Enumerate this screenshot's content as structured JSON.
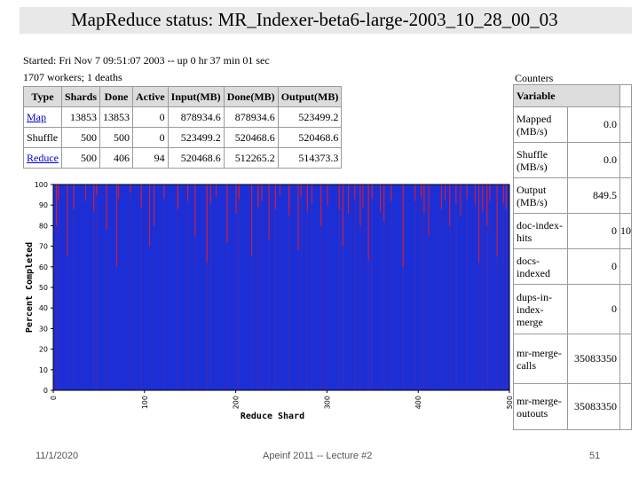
{
  "page": {
    "title": "MapReduce status: MR_Indexer-beta6-large-2003_10_28_00_03",
    "started": "Started: Fri Nov 7 09:51:07 2003 -- up 0 hr 37 min 01 sec",
    "workers": "1707 workers; 1 deaths"
  },
  "jobs_table": {
    "headers": [
      "Type",
      "Shards",
      "Done",
      "Active",
      "Input(MB)",
      "Done(MB)",
      "Output(MB)"
    ],
    "rows": [
      {
        "type": "Map",
        "shards": "13853",
        "done": "13853",
        "active": "0",
        "input": "878934.6",
        "done_mb": "878934.6",
        "output": "523499.2"
      },
      {
        "type": "Shuffle",
        "shards": "500",
        "done": "500",
        "active": "0",
        "input": "523499.2",
        "done_mb": "520468.6",
        "output": "520468.6"
      },
      {
        "type": "Reduce",
        "shards": "500",
        "done": "406",
        "active": "94",
        "input": "520468.6",
        "done_mb": "512265.2",
        "output": "514373.3"
      }
    ]
  },
  "counters": {
    "title": "Counters",
    "header": "Variable",
    "items": [
      {
        "name": "Mapped (MB/s)",
        "value": "0.0",
        "extra": ""
      },
      {
        "name": "Shuffle (MB/s)",
        "value": "0.0",
        "extra": ""
      },
      {
        "name": "Output (MB/s)",
        "value": "849.5",
        "extra": ""
      },
      {
        "name": "doc-index-hits",
        "value": "0",
        "extra": "10"
      },
      {
        "name": "docs-indexed",
        "value": "0",
        "extra": ""
      },
      {
        "name": "dups-in-index-merge",
        "value": "0",
        "extra": ""
      },
      {
        "name": "mr-merge-calls",
        "value": "35083350",
        "extra": ""
      },
      {
        "name": "mr-merge-outouts",
        "value": "35083350",
        "extra": ""
      }
    ]
  },
  "chart_data": {
    "type": "bar",
    "xlabel": "Reduce Shard",
    "ylabel": "Percent Completed",
    "xlim": [
      0,
      500
    ],
    "ylim": [
      0,
      100
    ],
    "xticks": [
      0,
      100,
      200,
      300,
      400,
      500
    ],
    "yticks": [
      0,
      10,
      20,
      30,
      40,
      50,
      60,
      70,
      80,
      90,
      100
    ],
    "shards": 500,
    "done_shards": 406,
    "bar_color": "#1c2fd6",
    "partial_color": "#d01e3c",
    "partial_shards": [
      {
        "x": 3,
        "y": 80
      },
      {
        "x": 5,
        "y": 93
      },
      {
        "x": 15,
        "y": 65
      },
      {
        "x": 22,
        "y": 88
      },
      {
        "x": 35,
        "y": 92
      },
      {
        "x": 44,
        "y": 87
      },
      {
        "x": 47,
        "y": 95
      },
      {
        "x": 58,
        "y": 78
      },
      {
        "x": 69,
        "y": 60
      },
      {
        "x": 71,
        "y": 93
      },
      {
        "x": 84,
        "y": 96
      },
      {
        "x": 96,
        "y": 89
      },
      {
        "x": 105,
        "y": 70
      },
      {
        "x": 110,
        "y": 80
      },
      {
        "x": 121,
        "y": 93
      },
      {
        "x": 136,
        "y": 88
      },
      {
        "x": 147,
        "y": 92
      },
      {
        "x": 155,
        "y": 75
      },
      {
        "x": 168,
        "y": 62
      },
      {
        "x": 172,
        "y": 91
      },
      {
        "x": 178,
        "y": 94
      },
      {
        "x": 190,
        "y": 72
      },
      {
        "x": 200,
        "y": 86
      },
      {
        "x": 203,
        "y": 93
      },
      {
        "x": 217,
        "y": 65
      },
      {
        "x": 224,
        "y": 89
      },
      {
        "x": 228,
        "y": 92
      },
      {
        "x": 236,
        "y": 73
      },
      {
        "x": 243,
        "y": 88
      },
      {
        "x": 248,
        "y": 95
      },
      {
        "x": 258,
        "y": 85
      },
      {
        "x": 268,
        "y": 68
      },
      {
        "x": 271,
        "y": 94
      },
      {
        "x": 278,
        "y": 87
      },
      {
        "x": 283,
        "y": 91
      },
      {
        "x": 293,
        "y": 80
      },
      {
        "x": 300,
        "y": 90
      },
      {
        "x": 313,
        "y": 88
      },
      {
        "x": 317,
        "y": 70
      },
      {
        "x": 323,
        "y": 86
      },
      {
        "x": 330,
        "y": 93
      },
      {
        "x": 336,
        "y": 80
      },
      {
        "x": 339,
        "y": 89
      },
      {
        "x": 345,
        "y": 63
      },
      {
        "x": 349,
        "y": 93
      },
      {
        "x": 358,
        "y": 87
      },
      {
        "x": 362,
        "y": 82
      },
      {
        "x": 370,
        "y": 92
      },
      {
        "x": 383,
        "y": 60
      },
      {
        "x": 396,
        "y": 92
      },
      {
        "x": 403,
        "y": 94
      },
      {
        "x": 406,
        "y": 86
      },
      {
        "x": 411,
        "y": 75
      },
      {
        "x": 425,
        "y": 88
      },
      {
        "x": 429,
        "y": 92
      },
      {
        "x": 434,
        "y": 80
      },
      {
        "x": 441,
        "y": 91
      },
      {
        "x": 446,
        "y": 85
      },
      {
        "x": 453,
        "y": 93
      },
      {
        "x": 462,
        "y": 90
      },
      {
        "x": 466,
        "y": 62
      },
      {
        "x": 470,
        "y": 87
      },
      {
        "x": 475,
        "y": 80
      },
      {
        "x": 478,
        "y": 92
      },
      {
        "x": 486,
        "y": 65
      },
      {
        "x": 493,
        "y": 91
      },
      {
        "x": 496,
        "y": 88
      }
    ]
  },
  "footer": {
    "date": "11/1/2020",
    "course": "Apeinf 2011 -- Lecture #2",
    "page_number": "51"
  }
}
